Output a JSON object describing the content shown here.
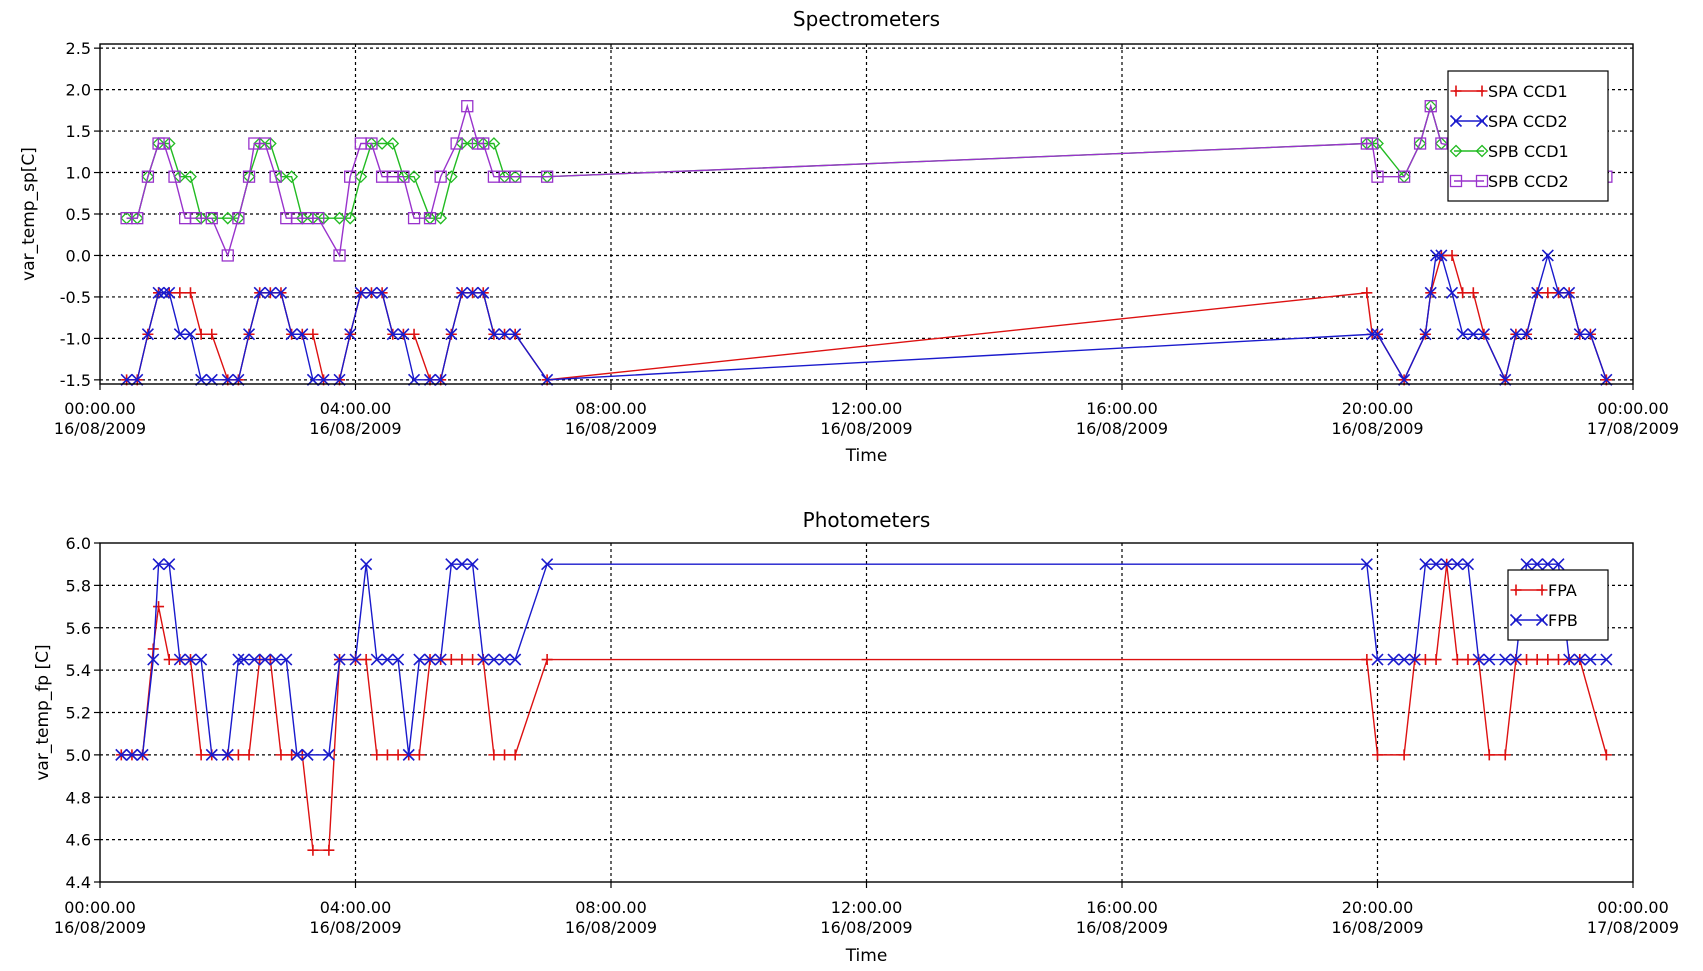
{
  "chart_data": [
    {
      "type": "line",
      "title": "Spectrometers",
      "xlabel": "Time",
      "ylabel": "var_temp_sp[C]",
      "ylim": [
        -1.55,
        2.55
      ],
      "yticks": [
        "2.5",
        "2.0",
        "1.5",
        "1.0",
        "0.5",
        "0.0",
        "-0.5",
        "-1.0",
        "-1.5"
      ],
      "xlim": [
        "16/08/2009 00:00",
        "17/08/2009 00:00"
      ],
      "xticks": [
        {
          "time": "00:00.00",
          "date": "16/08/2009"
        },
        {
          "time": "04:00.00",
          "date": "16/08/2009"
        },
        {
          "time": "08:00.00",
          "date": "16/08/2009"
        },
        {
          "time": "12:00.00",
          "date": "16/08/2009"
        },
        {
          "time": "16:00.00",
          "date": "16/08/2009"
        },
        {
          "time": "20:00.00",
          "date": "16/08/2009"
        },
        {
          "time": "00:00.00",
          "date": "17/08/2009"
        }
      ],
      "grid": true,
      "legend_position": "top-right",
      "series": [
        {
          "name": "SPA CCD1",
          "color": "#dd1111",
          "marker": "plus",
          "x": [
            "00:25",
            "00:35",
            "00:45",
            "00:55",
            "01:05",
            "01:15",
            "01:25",
            "01:35",
            "01:45",
            "02:00",
            "02:10",
            "02:20",
            "02:30",
            "02:40",
            "02:50",
            "03:00",
            "03:10",
            "03:20",
            "03:30",
            "03:45",
            "03:55",
            "04:05",
            "04:15",
            "04:25",
            "04:35",
            "04:45",
            "04:55",
            "05:10",
            "05:20",
            "05:30",
            "05:40",
            "05:50",
            "06:00",
            "06:10",
            "06:20",
            "06:30",
            "07:00",
            "19:50",
            "19:55",
            "20:00",
            "20:25",
            "20:45",
            "20:50",
            "21:00",
            "21:10",
            "21:20",
            "21:30",
            "21:40",
            "22:00",
            "22:10",
            "22:20",
            "22:30",
            "22:40",
            "22:50",
            "23:00",
            "23:10",
            "23:20",
            "23:35"
          ],
          "y": [
            -1.5,
            -1.5,
            -0.95,
            -0.45,
            -0.45,
            -0.45,
            -0.45,
            -0.95,
            -0.95,
            -1.5,
            -1.5,
            -0.95,
            -0.45,
            -0.45,
            -0.45,
            -0.95,
            -0.95,
            -0.95,
            -1.5,
            -1.5,
            -0.95,
            -0.45,
            -0.45,
            -0.45,
            -0.95,
            -0.95,
            -0.95,
            -1.5,
            -1.5,
            -0.95,
            -0.45,
            -0.45,
            -0.45,
            -0.95,
            -0.95,
            -0.95,
            -1.5,
            -0.45,
            -0.95,
            -0.95,
            -1.5,
            -0.95,
            -0.45,
            0.0,
            0.0,
            -0.45,
            -0.45,
            -0.95,
            -1.5,
            -0.95,
            -0.95,
            -0.45,
            -0.45,
            -0.45,
            -0.45,
            -0.95,
            -0.95,
            -1.5
          ]
        },
        {
          "name": "SPA CCD2",
          "color": "#1a1acc",
          "marker": "x",
          "x": [
            "00:25",
            "00:35",
            "00:45",
            "00:55",
            "01:00",
            "01:05",
            "01:15",
            "01:25",
            "01:35",
            "01:45",
            "02:00",
            "02:10",
            "02:20",
            "02:30",
            "02:40",
            "02:50",
            "03:00",
            "03:10",
            "03:20",
            "03:30",
            "03:45",
            "03:55",
            "04:05",
            "04:15",
            "04:25",
            "04:35",
            "04:45",
            "04:55",
            "05:10",
            "05:20",
            "05:30",
            "05:40",
            "05:50",
            "06:00",
            "06:10",
            "06:20",
            "06:30",
            "07:00",
            "19:55",
            "20:00",
            "20:25",
            "20:45",
            "20:50",
            "20:55",
            "21:00",
            "21:10",
            "21:20",
            "21:30",
            "21:40",
            "22:00",
            "22:10",
            "22:20",
            "22:30",
            "22:40",
            "22:50",
            "23:00",
            "23:10",
            "23:20",
            "23:35"
          ],
          "y": [
            -1.5,
            -1.5,
            -0.95,
            -0.45,
            -0.45,
            -0.45,
            -0.95,
            -0.95,
            -1.5,
            -1.5,
            -1.5,
            -1.5,
            -0.95,
            -0.45,
            -0.45,
            -0.45,
            -0.95,
            -0.95,
            -1.5,
            -1.5,
            -1.5,
            -0.95,
            -0.45,
            -0.45,
            -0.45,
            -0.95,
            -0.95,
            -1.5,
            -1.5,
            -1.5,
            -0.95,
            -0.45,
            -0.45,
            -0.45,
            -0.95,
            -0.95,
            -0.95,
            -1.5,
            -0.95,
            -0.95,
            -1.5,
            -0.95,
            -0.45,
            0.0,
            0.0,
            -0.45,
            -0.95,
            -0.95,
            -0.95,
            -1.5,
            -0.95,
            -0.95,
            -0.45,
            0.0,
            -0.45,
            -0.45,
            -0.95,
            -0.95,
            -1.5
          ]
        },
        {
          "name": "SPB CCD1",
          "color": "#22bb22",
          "marker": "diamond",
          "x": [
            "00:25",
            "00:35",
            "00:45",
            "00:55",
            "01:05",
            "01:15",
            "01:25",
            "01:35",
            "01:45",
            "02:00",
            "02:10",
            "02:20",
            "02:30",
            "02:40",
            "02:50",
            "03:00",
            "03:10",
            "03:20",
            "03:30",
            "03:45",
            "03:55",
            "04:05",
            "04:15",
            "04:25",
            "04:35",
            "04:45",
            "04:55",
            "05:10",
            "05:20",
            "05:30",
            "05:40",
            "05:50",
            "06:00",
            "06:10",
            "06:20",
            "06:30",
            "07:00",
            "19:50",
            "20:00",
            "20:25",
            "20:40",
            "20:50",
            "21:00"
          ],
          "y": [
            0.45,
            0.45,
            0.95,
            1.35,
            1.35,
            0.95,
            0.95,
            0.45,
            0.45,
            0.45,
            0.45,
            0.95,
            1.35,
            1.35,
            0.95,
            0.95,
            0.45,
            0.45,
            0.45,
            0.45,
            0.45,
            0.95,
            1.35,
            1.35,
            1.35,
            0.95,
            0.95,
            0.45,
            0.45,
            0.95,
            1.35,
            1.35,
            1.35,
            1.35,
            0.95,
            0.95,
            0.95,
            1.35,
            1.35,
            0.95,
            1.35,
            1.8,
            1.35
          ]
        },
        {
          "name": "SPB CCD2",
          "color": "#9933cc",
          "marker": "square",
          "x": [
            "00:25",
            "00:35",
            "00:45",
            "00:55",
            "01:00",
            "01:10",
            "01:20",
            "01:30",
            "01:45",
            "02:00",
            "02:10",
            "02:20",
            "02:25",
            "02:35",
            "02:45",
            "02:55",
            "03:05",
            "03:15",
            "03:25",
            "03:45",
            "03:55",
            "04:05",
            "04:15",
            "04:25",
            "04:35",
            "04:45",
            "04:55",
            "05:10",
            "05:20",
            "05:35",
            "05:45",
            "05:55",
            "06:00",
            "06:10",
            "06:20",
            "06:30",
            "07:00",
            "19:50",
            "19:55",
            "20:00",
            "20:25",
            "20:40",
            "20:50",
            "21:00",
            "23:35"
          ],
          "y": [
            0.45,
            0.45,
            0.95,
            1.35,
            1.35,
            0.95,
            0.45,
            0.45,
            0.45,
            0.0,
            0.45,
            0.95,
            1.35,
            1.35,
            0.95,
            0.45,
            0.45,
            0.45,
            0.45,
            0.0,
            0.95,
            1.35,
            1.35,
            0.95,
            0.95,
            0.95,
            0.45,
            0.45,
            0.95,
            1.35,
            1.8,
            1.35,
            1.35,
            0.95,
            0.95,
            0.95,
            0.95,
            1.35,
            1.35,
            0.95,
            0.95,
            1.35,
            1.8,
            1.35,
            0.95
          ]
        }
      ]
    },
    {
      "type": "line",
      "title": "Photometers",
      "xlabel": "Time",
      "ylabel": "var_temp_fp [C]",
      "ylim": [
        4.4,
        6.0
      ],
      "yticks": [
        "6.0",
        "5.8",
        "5.6",
        "5.4",
        "5.2",
        "5.0",
        "4.8",
        "4.6",
        "4.4"
      ],
      "xlim": [
        "16/08/2009 00:00",
        "17/08/2009 00:00"
      ],
      "xticks": [
        {
          "time": "00:00.00",
          "date": "16/08/2009"
        },
        {
          "time": "04:00.00",
          "date": "16/08/2009"
        },
        {
          "time": "08:00.00",
          "date": "16/08/2009"
        },
        {
          "time": "12:00.00",
          "date": "16/08/2009"
        },
        {
          "time": "16:00.00",
          "date": "16/08/2009"
        },
        {
          "time": "20:00.00",
          "date": "16/08/2009"
        },
        {
          "time": "00:00.00",
          "date": "17/08/2009"
        }
      ],
      "grid": true,
      "legend_position": "top-right",
      "series": [
        {
          "name": "FPA",
          "color": "#dd1111",
          "marker": "plus",
          "x": [
            "00:20",
            "00:30",
            "00:40",
            "00:50",
            "00:55",
            "01:05",
            "01:15",
            "01:25",
            "01:35",
            "01:45",
            "02:00",
            "02:10",
            "02:20",
            "02:30",
            "02:40",
            "02:50",
            "03:00",
            "03:10",
            "03:20",
            "03:35",
            "03:45",
            "04:00",
            "04:10",
            "04:20",
            "04:30",
            "04:40",
            "04:50",
            "05:00",
            "05:10",
            "05:20",
            "05:30",
            "05:40",
            "05:50",
            "06:00",
            "06:10",
            "06:20",
            "06:30",
            "07:00",
            "19:50",
            "20:00",
            "20:25",
            "20:35",
            "20:45",
            "20:55",
            "21:05",
            "21:15",
            "21:25",
            "21:35",
            "21:45",
            "22:00",
            "22:10",
            "22:20",
            "22:30",
            "22:40",
            "22:50",
            "23:00",
            "23:10",
            "23:35"
          ],
          "y": [
            5.0,
            5.0,
            5.0,
            5.5,
            5.7,
            5.45,
            5.45,
            5.45,
            5.0,
            5.0,
            5.0,
            5.0,
            5.0,
            5.45,
            5.45,
            5.0,
            5.0,
            5.0,
            4.55,
            4.55,
            5.45,
            5.45,
            5.45,
            5.0,
            5.0,
            5.0,
            5.0,
            5.0,
            5.45,
            5.45,
            5.45,
            5.45,
            5.45,
            5.45,
            5.0,
            5.0,
            5.0,
            5.45,
            5.45,
            5.0,
            5.0,
            5.45,
            5.45,
            5.45,
            5.9,
            5.45,
            5.45,
            5.45,
            5.0,
            5.0,
            5.45,
            5.45,
            5.45,
            5.45,
            5.45,
            5.45,
            5.45,
            5.0
          ]
        },
        {
          "name": "FPB",
          "color": "#1a1acc",
          "marker": "x",
          "x": [
            "00:20",
            "00:30",
            "00:40",
            "00:50",
            "00:55",
            "01:05",
            "01:15",
            "01:25",
            "01:35",
            "01:45",
            "02:00",
            "02:10",
            "02:15",
            "02:25",
            "02:35",
            "02:45",
            "02:55",
            "03:05",
            "03:15",
            "03:35",
            "03:45",
            "04:00",
            "04:10",
            "04:20",
            "04:30",
            "04:40",
            "04:50",
            "05:00",
            "05:10",
            "05:20",
            "05:30",
            "05:40",
            "05:50",
            "06:00",
            "06:10",
            "06:20",
            "06:30",
            "07:00",
            "19:50",
            "20:00",
            "20:15",
            "20:25",
            "20:35",
            "20:45",
            "20:55",
            "21:05",
            "21:15",
            "21:25",
            "21:35",
            "21:45",
            "22:00",
            "22:10",
            "22:20",
            "22:30",
            "22:40",
            "22:50",
            "23:00",
            "23:10",
            "23:20",
            "23:35"
          ],
          "y": [
            5.0,
            5.0,
            5.0,
            5.45,
            5.9,
            5.9,
            5.45,
            5.45,
            5.45,
            5.0,
            5.0,
            5.45,
            5.45,
            5.45,
            5.45,
            5.45,
            5.45,
            5.0,
            5.0,
            5.0,
            5.45,
            5.45,
            5.9,
            5.45,
            5.45,
            5.45,
            5.0,
            5.45,
            5.45,
            5.45,
            5.9,
            5.9,
            5.9,
            5.45,
            5.45,
            5.45,
            5.45,
            5.9,
            5.9,
            5.45,
            5.45,
            5.45,
            5.45,
            5.9,
            5.9,
            5.9,
            5.9,
            5.9,
            5.45,
            5.45,
            5.45,
            5.45,
            5.9,
            5.9,
            5.9,
            5.9,
            5.45,
            5.45,
            5.45,
            5.45
          ]
        }
      ]
    }
  ]
}
